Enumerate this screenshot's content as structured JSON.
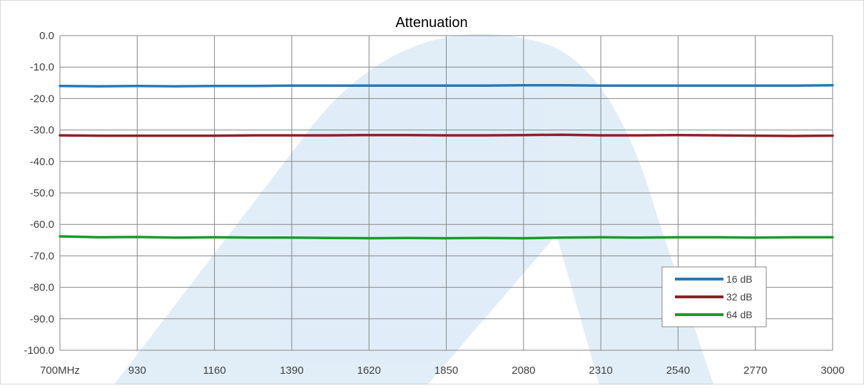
{
  "colors": {
    "series_16": "#2878b8",
    "series_32": "#8b2226",
    "series_64": "#1a9a2a",
    "grid": "#868686",
    "watermark": "#2a86d0"
  },
  "chart_data": {
    "type": "line",
    "title": "Attenuation",
    "xlabel": "",
    "ylabel": "",
    "xlim": [
      700,
      3000
    ],
    "ylim": [
      -100,
      0
    ],
    "x_tick_values": [
      700,
      930,
      1160,
      1390,
      1620,
      1850,
      2080,
      2310,
      2540,
      2770,
      3000
    ],
    "x_tick_labels": [
      "700MHz",
      "930",
      "1160",
      "1390",
      "1620",
      "1850",
      "2080",
      "2310",
      "2540",
      "2770",
      "3000"
    ],
    "y_tick_values": [
      0,
      -10,
      -20,
      -30,
      -40,
      -50,
      -60,
      -70,
      -80,
      -90,
      -100
    ],
    "y_tick_labels": [
      "0.0",
      "-10.0",
      "-20.0",
      "-30.0",
      "-40.0",
      "-50.0",
      "-60.0",
      "-70.0",
      "-80.0",
      "-90.0",
      "-100.0"
    ],
    "grid": true,
    "legend_position": "bottom-right",
    "x": [
      700,
      815,
      930,
      1045,
      1160,
      1275,
      1390,
      1505,
      1620,
      1735,
      1850,
      1965,
      2080,
      2195,
      2310,
      2425,
      2540,
      2655,
      2770,
      2885,
      3000
    ],
    "series": [
      {
        "name": "16 dB",
        "values": [
          -16.0,
          -16.1,
          -16.0,
          -16.1,
          -16.0,
          -16.0,
          -15.9,
          -15.9,
          -15.9,
          -15.9,
          -15.9,
          -15.9,
          -15.8,
          -15.8,
          -15.9,
          -15.9,
          -15.9,
          -15.9,
          -15.9,
          -15.9,
          -15.8
        ]
      },
      {
        "name": "32 dB",
        "values": [
          -31.7,
          -31.8,
          -31.8,
          -31.8,
          -31.8,
          -31.7,
          -31.7,
          -31.7,
          -31.6,
          -31.6,
          -31.7,
          -31.7,
          -31.6,
          -31.5,
          -31.7,
          -31.7,
          -31.6,
          -31.7,
          -31.8,
          -31.9,
          -31.8
        ]
      },
      {
        "name": "64 dB",
        "values": [
          -63.8,
          -64.1,
          -64.0,
          -64.2,
          -64.1,
          -64.2,
          -64.2,
          -64.3,
          -64.4,
          -64.3,
          -64.4,
          -64.3,
          -64.4,
          -64.2,
          -64.1,
          -64.2,
          -64.1,
          -64.1,
          -64.2,
          -64.1,
          -64.1
        ]
      }
    ]
  }
}
